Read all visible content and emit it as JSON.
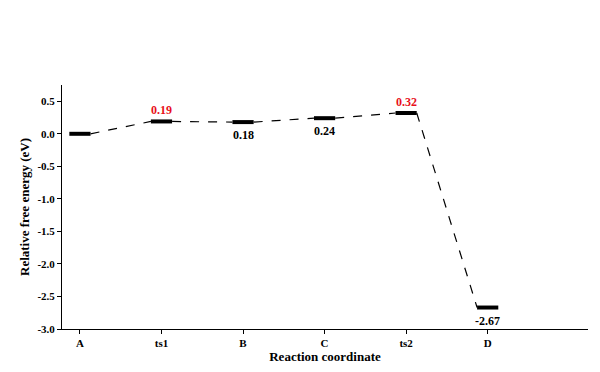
{
  "chart_data": {
    "type": "line",
    "xlabel": "Reaction coordinate",
    "ylabel": "Relative free energy (eV)",
    "categories": [
      "A",
      "ts1",
      "B",
      "C",
      "ts2",
      "D"
    ],
    "values": [
      0,
      0.19,
      0.18,
      0.24,
      0.32,
      -2.67
    ],
    "value_labels": [
      null,
      "0.19",
      "0.18",
      "0.24",
      "0.32",
      "-2.67"
    ],
    "data_labels": true,
    "color": "#000000",
    "line_style": "dashed",
    "ylim": [
      -3.0,
      0.75
    ],
    "yticks": [
      {
        "value": -3,
        "label": "-3.0"
      },
      -2.5,
      {
        "value": -2,
        "label": "-2.0"
      },
      -1.5,
      {
        "value": -1,
        "label": "-1.0"
      },
      -0.5,
      {
        "value": 0,
        "label": "0.0"
      },
      0.5
    ]
  }
}
